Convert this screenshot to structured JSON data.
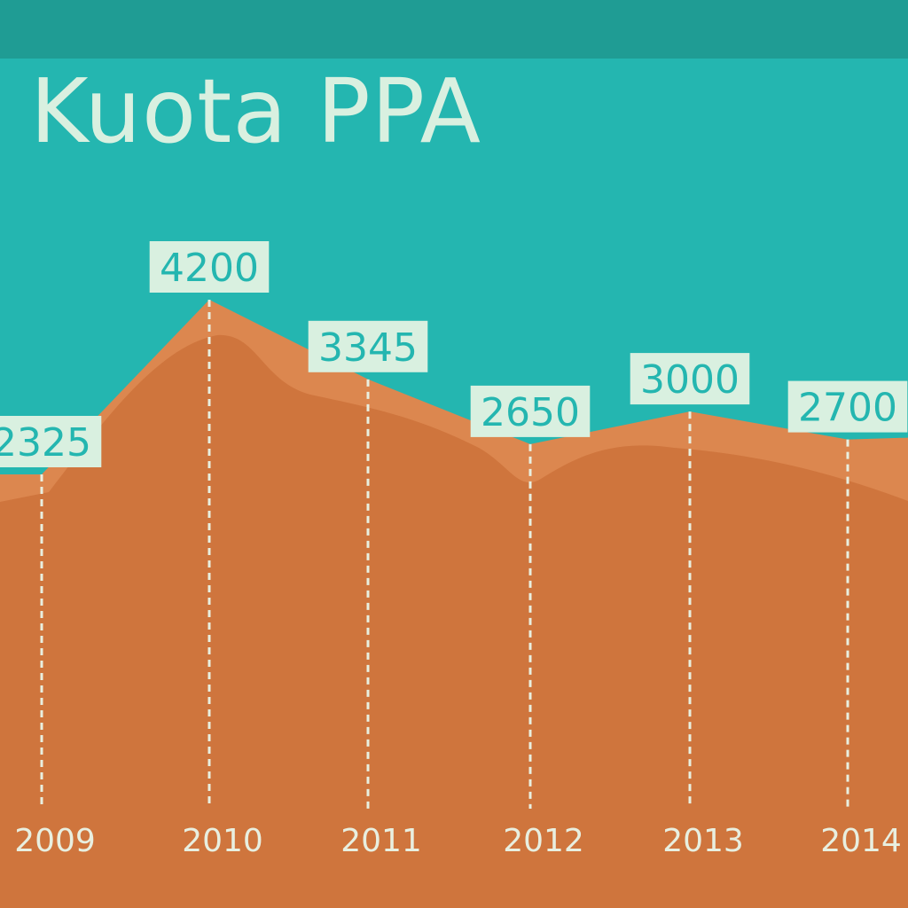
{
  "title": "Kuota PPA",
  "colors": {
    "top_band": "#1f9c94",
    "background": "#24b6b0",
    "area_front": "#cf753d",
    "area_back": "#dc874f",
    "label_box": "#d9f0e0",
    "label_text": "#24b6b0",
    "guide_line": "#e8efe0",
    "year_text": "#e8efe0"
  },
  "chart_data": {
    "type": "area",
    "title": "Kuota PPA",
    "xlabel": "",
    "ylabel": "",
    "categories": [
      "2009",
      "2010",
      "2011",
      "2012",
      "2013",
      "2014"
    ],
    "series": [
      {
        "values": [
          2325,
          4200,
          3345,
          2650,
          3000,
          2700
        ]
      }
    ],
    "value_labels": [
      "2325",
      "4200",
      "3345",
      "2650",
      "3000",
      "2700"
    ],
    "grid": false
  }
}
